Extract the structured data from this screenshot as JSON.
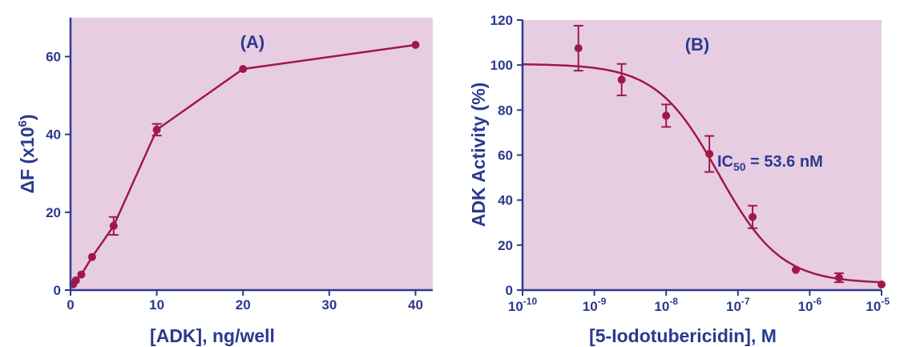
{
  "chart_data": [
    {
      "type": "line",
      "panel_label": "(A)",
      "xlabel": "[ADK], ng/well",
      "ylabel_main": "ΔF (x10",
      "ylabel_sup": "6",
      "ylabel_close": ")",
      "xlim": [
        0,
        42
      ],
      "ylim": [
        0,
        70
      ],
      "xticks": [
        0,
        10,
        20,
        30,
        40
      ],
      "yticks": [
        0,
        20,
        40,
        60
      ],
      "x": [
        0.313,
        0.625,
        1.25,
        2.5,
        5,
        10,
        20,
        40
      ],
      "y": [
        1.5,
        2.5,
        4,
        8.5,
        16.5,
        41.2,
        56.8,
        63
      ],
      "yerr": [
        0.3,
        0.3,
        0.4,
        0.6,
        2.3,
        1.5,
        0.5,
        0.4
      ],
      "grid": false,
      "colors": {
        "plot_bg": "#e6cde2",
        "series": "#a0174c",
        "axis": "#2b3a8f"
      }
    },
    {
      "type": "scatter",
      "panel_label": "(B)",
      "xlabel": "[5-Iodotubericidin], M",
      "ylabel": "ADK Activity (%)",
      "x_scale": "log",
      "xlim": [
        1e-10,
        1e-05
      ],
      "ylim": [
        0,
        120
      ],
      "xticks": [
        {
          "base": "10",
          "exp": "-10",
          "value": 1e-10
        },
        {
          "base": "10",
          "exp": "-9",
          "value": 1e-09
        },
        {
          "base": "10",
          "exp": "-8",
          "value": 1e-08
        },
        {
          "base": "10",
          "exp": "-7",
          "value": 1e-07
        },
        {
          "base": "10",
          "exp": "-6",
          "value": 1e-06
        },
        {
          "base": "10",
          "exp": "-5",
          "value": 1e-05
        }
      ],
      "yticks": [
        0,
        20,
        40,
        60,
        80,
        100,
        120
      ],
      "x": [
        6e-10,
        2.4e-09,
        1e-08,
        4e-08,
        1.6e-07,
        6.4e-07,
        2.56e-06,
        1e-05
      ],
      "y": [
        107.5,
        93.5,
        77.5,
        60.5,
        32.5,
        9,
        5.5,
        2.5
      ],
      "yerr": [
        10,
        7,
        5,
        8,
        5,
        0.8,
        2,
        0.8
      ],
      "fit": {
        "model": "4PL",
        "top": 100.5,
        "bottom": 3,
        "ic50": 5.36e-08,
        "hill": 1.0
      },
      "annotation": {
        "text": "IC",
        "sub": "50",
        "rest": " = 53.6 nM"
      },
      "grid": false,
      "colors": {
        "plot_bg": "#e6cde2",
        "series": "#a0174c",
        "axis": "#2b3a8f"
      }
    }
  ]
}
